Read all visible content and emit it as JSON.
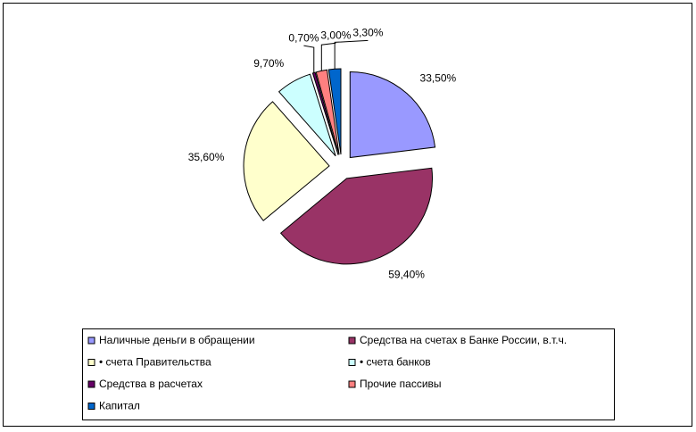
{
  "chart_data": {
    "type": "pie",
    "series": [
      {
        "name": "Наличные деньги в обращении",
        "color": "#9999ff"
      },
      {
        "name": "Средства на счетах в Банке России, в.т.ч.",
        "color": "#993366"
      },
      {
        "name": "• счета Правительства",
        "color": "#ffffcc"
      },
      {
        "name": "• счета банков",
        "color": "#ccffff"
      },
      {
        "name": "Средства в расчетах",
        "color": "#660066"
      },
      {
        "name": "Прочие пассивы",
        "color": "#ff8080"
      },
      {
        "name": "Капитал",
        "color": "#0066cc"
      }
    ],
    "values": [
      33.5,
      59.4,
      35.6,
      9.7,
      0.7,
      3.0,
      3.3
    ],
    "value_labels": [
      "33,50%",
      "59,40%",
      "35,60%",
      "9,70%",
      "0,70%",
      "3,00%",
      "3,30%"
    ],
    "legend": "bottom"
  }
}
